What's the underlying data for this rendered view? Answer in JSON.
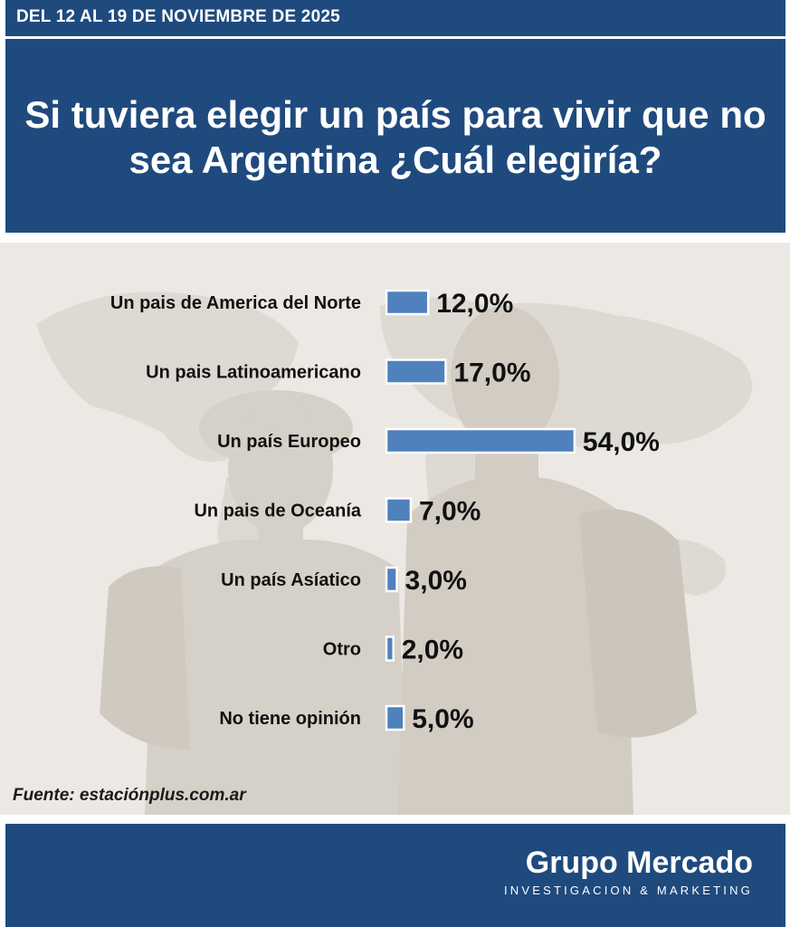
{
  "header": {
    "date_range": "DEL 12 AL 19 DE NOVIEMBRE DE 2025",
    "question": "Si tuviera elegir un país para vivir que no sea Argentina ¿Cuál elegiría?"
  },
  "chart_data": {
    "type": "bar",
    "orientation": "horizontal",
    "title": "Si tuviera elegir un país para vivir que no sea Argentina ¿Cuál elegiría?",
    "categories": [
      "Un pais de America del Norte",
      "Un pais Latinoamericano",
      "Un país Europeo",
      "Un pais de Oceanía",
      "Un país Asíatico",
      "Otro",
      "No tiene opinión"
    ],
    "values": [
      12.0,
      17.0,
      54.0,
      7.0,
      3.0,
      2.0,
      5.0
    ],
    "value_labels": [
      "12,0%",
      "17,0%",
      "54,0%",
      "7,0%",
      "3,0%",
      "2,0%",
      "5,0%"
    ],
    "unit": "%",
    "xlim": [
      0,
      60
    ],
    "grid": false,
    "legend": "none",
    "bar_color": "#4f81bd"
  },
  "source": "Fuente: estaciónplus.com.ar",
  "brand": {
    "name": "Grupo Mercado",
    "tagline": "INVESTIGACION & MARKETING"
  },
  "colors": {
    "header_bg": "#1f4a7e",
    "bar": "#4f81bd",
    "background": "#ece9e4"
  }
}
